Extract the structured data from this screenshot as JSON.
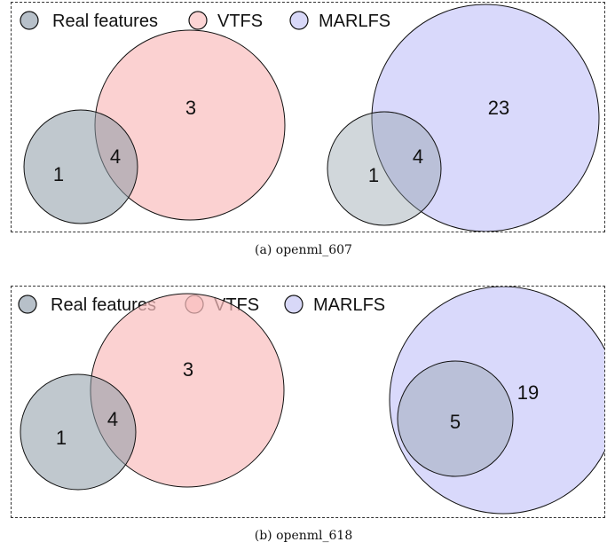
{
  "legend": [
    {
      "label": "Real features",
      "color": "#b7c0c9"
    },
    {
      "label": "VTFS",
      "color": "#fcd4d4"
    },
    {
      "label": "MARLFS",
      "color": "#d8d8f8"
    }
  ],
  "colors": {
    "real": "#8d9aa6",
    "vtfs": "#f9bdbd",
    "marlfs": "#c9c9f9",
    "stroke": "#111111"
  },
  "panels": [
    {
      "caption": "(a)  openml_607",
      "vtfs": {
        "only": "3",
        "shared": "4",
        "real_only": "1"
      },
      "marlfs": {
        "only": "23",
        "shared": "4",
        "real_only": "1"
      }
    },
    {
      "caption": "(b)  openml_618",
      "vtfs": {
        "only": "3",
        "shared": "4",
        "real_only": "1"
      },
      "marlfs": {
        "only": "19",
        "shared": "5"
      }
    }
  ]
}
